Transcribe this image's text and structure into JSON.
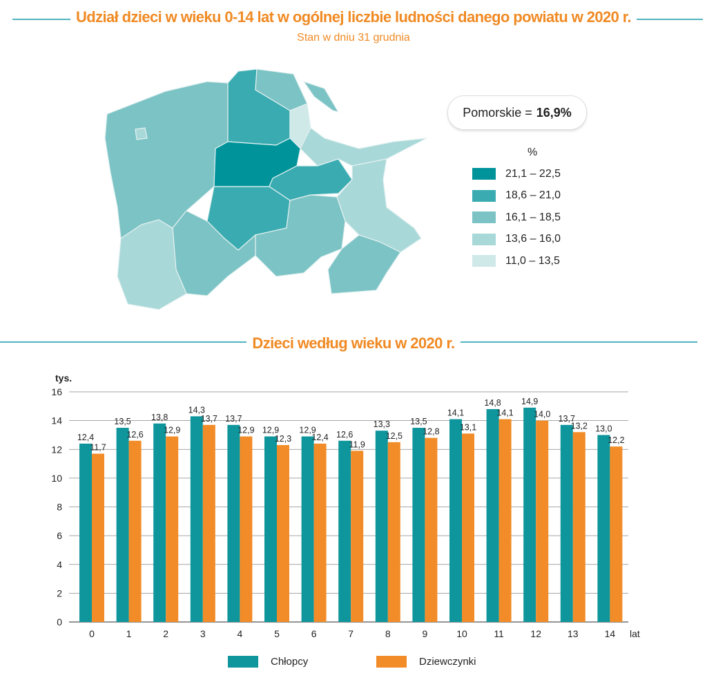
{
  "header": {
    "title": "Udział dzieci w wieku 0-14 lat w ogólnej liczbie ludności danego powiatu w 2020 r.",
    "subtitle": "Stan w dniu 31 grudnia"
  },
  "map": {
    "summary_label": "Pomorskie =",
    "summary_value": "16,9%",
    "legend_unit": "%",
    "legend": [
      {
        "label": "21,1 – 22,5",
        "color": "#00949a"
      },
      {
        "label": "18,6 – 21,0",
        "color": "#3aacb1"
      },
      {
        "label": "16,1 – 18,5",
        "color": "#7cc3c5"
      },
      {
        "label": "13,6 – 16,0",
        "color": "#a9d8d8"
      },
      {
        "label": "11,0 – 13,5",
        "color": "#cfe8e8"
      }
    ]
  },
  "chart_data": {
    "type": "bar",
    "title": "Dzieci według wieku w 2020 r.",
    "ylabel": "tys.",
    "xlabel": "lat",
    "ylim": [
      0,
      16
    ],
    "yticks": [
      0,
      2,
      4,
      6,
      8,
      10,
      12,
      14,
      16
    ],
    "grid": true,
    "legend_placement": "bottom",
    "categories": [
      "0",
      "1",
      "2",
      "3",
      "4",
      "5",
      "6",
      "7",
      "8",
      "9",
      "10",
      "11",
      "12",
      "13",
      "14"
    ],
    "series": [
      {
        "name": "Chłopcy",
        "color": "#0e969c",
        "values": [
          12.4,
          13.5,
          13.8,
          14.3,
          13.7,
          12.9,
          12.9,
          12.6,
          13.3,
          13.5,
          14.1,
          14.8,
          14.9,
          13.7,
          13.0
        ]
      },
      {
        "name": "Dziewczynki",
        "color": "#f28c28",
        "values": [
          11.7,
          12.6,
          12.9,
          13.7,
          12.9,
          12.3,
          12.4,
          11.9,
          12.5,
          12.8,
          13.1,
          14.1,
          14.0,
          13.2,
          12.2
        ]
      }
    ]
  }
}
